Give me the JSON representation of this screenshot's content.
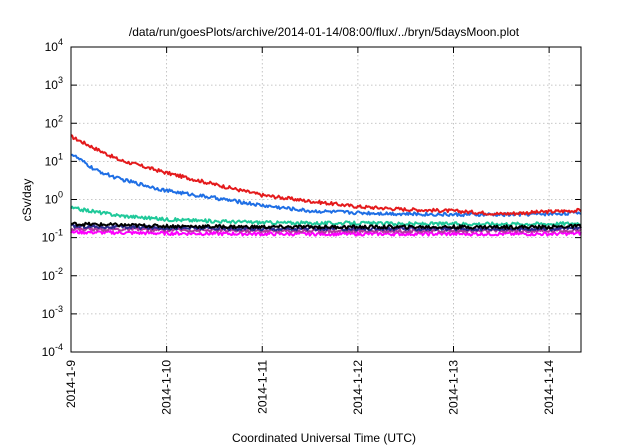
{
  "chart_data": {
    "type": "line",
    "title": "/data/run/goesPlots/archive/2014-01-14/08:00/flux/../bryn/5daysMoon.plot",
    "xlabel": "Coordinated Universal Time (UTC)",
    "ylabel": "cSv/day",
    "xlim": [
      "2014-01-09T00:00",
      "2014-01-14T08:00"
    ],
    "ylim": [
      0.0001,
      10000
    ],
    "yscale": "log",
    "grid": true,
    "legend": "none",
    "x_ticks": [
      {
        "label": "2014-1-9",
        "x": "2014-01-09T00:00"
      },
      {
        "label": "2014-1-10",
        "x": "2014-01-10T00:00"
      },
      {
        "label": "2014-1-11",
        "x": "2014-01-11T00:00"
      },
      {
        "label": "2014-1-12",
        "x": "2014-01-12T00:00"
      },
      {
        "label": "2014-1-13",
        "x": "2014-01-13T00:00"
      },
      {
        "label": "2014-1-14",
        "x": "2014-01-14T00:00"
      }
    ],
    "y_ticks": [
      {
        "base": "10",
        "exp": "-4",
        "value": 0.0001
      },
      {
        "base": "10",
        "exp": "-3",
        "value": 0.001
      },
      {
        "base": "10",
        "exp": "-2",
        "value": 0.01
      },
      {
        "base": "10",
        "exp": "-1",
        "value": 0.1
      },
      {
        "base": "10",
        "exp": "0",
        "value": 1
      },
      {
        "base": "10",
        "exp": "1",
        "value": 10
      },
      {
        "base": "10",
        "exp": "2",
        "value": 100
      },
      {
        "base": "10",
        "exp": "3",
        "value": 1000
      },
      {
        "base": "10",
        "exp": "4",
        "value": 10000
      }
    ],
    "series": [
      {
        "color": "#e41a1c",
        "x": [
          "2014-01-09T00:00",
          "2014-01-09T06:00",
          "2014-01-09T12:00",
          "2014-01-10T00:00",
          "2014-01-10T12:00",
          "2014-01-11T00:00",
          "2014-01-11T12:00",
          "2014-01-12T00:00",
          "2014-01-12T12:00",
          "2014-01-13T00:00",
          "2014-01-13T12:00",
          "2014-01-14T00:00",
          "2014-01-14T08:00"
        ],
        "values": [
          45,
          22,
          11,
          5,
          2.5,
          1.3,
          0.9,
          0.65,
          0.55,
          0.5,
          0.42,
          0.48,
          0.52
        ]
      },
      {
        "color": "#1f6fe5",
        "x": [
          "2014-01-09T00:00",
          "2014-01-09T06:00",
          "2014-01-09T12:00",
          "2014-01-10T00:00",
          "2014-01-10T12:00",
          "2014-01-11T00:00",
          "2014-01-11T12:00",
          "2014-01-12T00:00",
          "2014-01-12T12:00",
          "2014-01-13T00:00",
          "2014-01-13T12:00",
          "2014-01-14T00:00",
          "2014-01-14T08:00"
        ],
        "values": [
          16,
          6,
          3.5,
          1.7,
          1.1,
          0.7,
          0.5,
          0.45,
          0.42,
          0.4,
          0.4,
          0.42,
          0.45
        ]
      },
      {
        "color": "#20c99a",
        "x": [
          "2014-01-09T00:00",
          "2014-01-09T06:00",
          "2014-01-09T12:00",
          "2014-01-10T00:00",
          "2014-01-10T12:00",
          "2014-01-11T00:00",
          "2014-01-11T12:00",
          "2014-01-12T00:00",
          "2014-01-12T12:00",
          "2014-01-13T00:00",
          "2014-01-13T12:00",
          "2014-01-14T00:00",
          "2014-01-14T08:00"
        ],
        "values": [
          0.6,
          0.48,
          0.38,
          0.3,
          0.27,
          0.25,
          0.24,
          0.24,
          0.23,
          0.23,
          0.23,
          0.23,
          0.24
        ]
      },
      {
        "color": "#000000",
        "x": [
          "2014-01-09T00:00",
          "2014-01-10T00:00",
          "2014-01-11T00:00",
          "2014-01-12T00:00",
          "2014-01-13T00:00",
          "2014-01-14T00:00",
          "2014-01-14T08:00"
        ],
        "values": [
          0.23,
          0.2,
          0.19,
          0.19,
          0.19,
          0.19,
          0.2
        ]
      },
      {
        "color": "#2b2b8f",
        "x": [
          "2014-01-09T00:00",
          "2014-01-10T00:00",
          "2014-01-11T00:00",
          "2014-01-12T00:00",
          "2014-01-13T00:00",
          "2014-01-14T00:00",
          "2014-01-14T08:00"
        ],
        "values": [
          0.2,
          0.18,
          0.17,
          0.17,
          0.17,
          0.17,
          0.18
        ]
      },
      {
        "color": "#b23aa0",
        "x": [
          "2014-01-09T00:00",
          "2014-01-10T00:00",
          "2014-01-11T00:00",
          "2014-01-12T00:00",
          "2014-01-13T00:00",
          "2014-01-14T00:00",
          "2014-01-14T08:00"
        ],
        "values": [
          0.17,
          0.16,
          0.15,
          0.15,
          0.15,
          0.15,
          0.16
        ]
      },
      {
        "color": "#ff00ff",
        "x": [
          "2014-01-09T00:00",
          "2014-01-10T00:00",
          "2014-01-11T00:00",
          "2014-01-12T00:00",
          "2014-01-13T00:00",
          "2014-01-14T00:00",
          "2014-01-14T08:00"
        ],
        "values": [
          0.14,
          0.13,
          0.125,
          0.125,
          0.125,
          0.125,
          0.13
        ]
      }
    ]
  }
}
